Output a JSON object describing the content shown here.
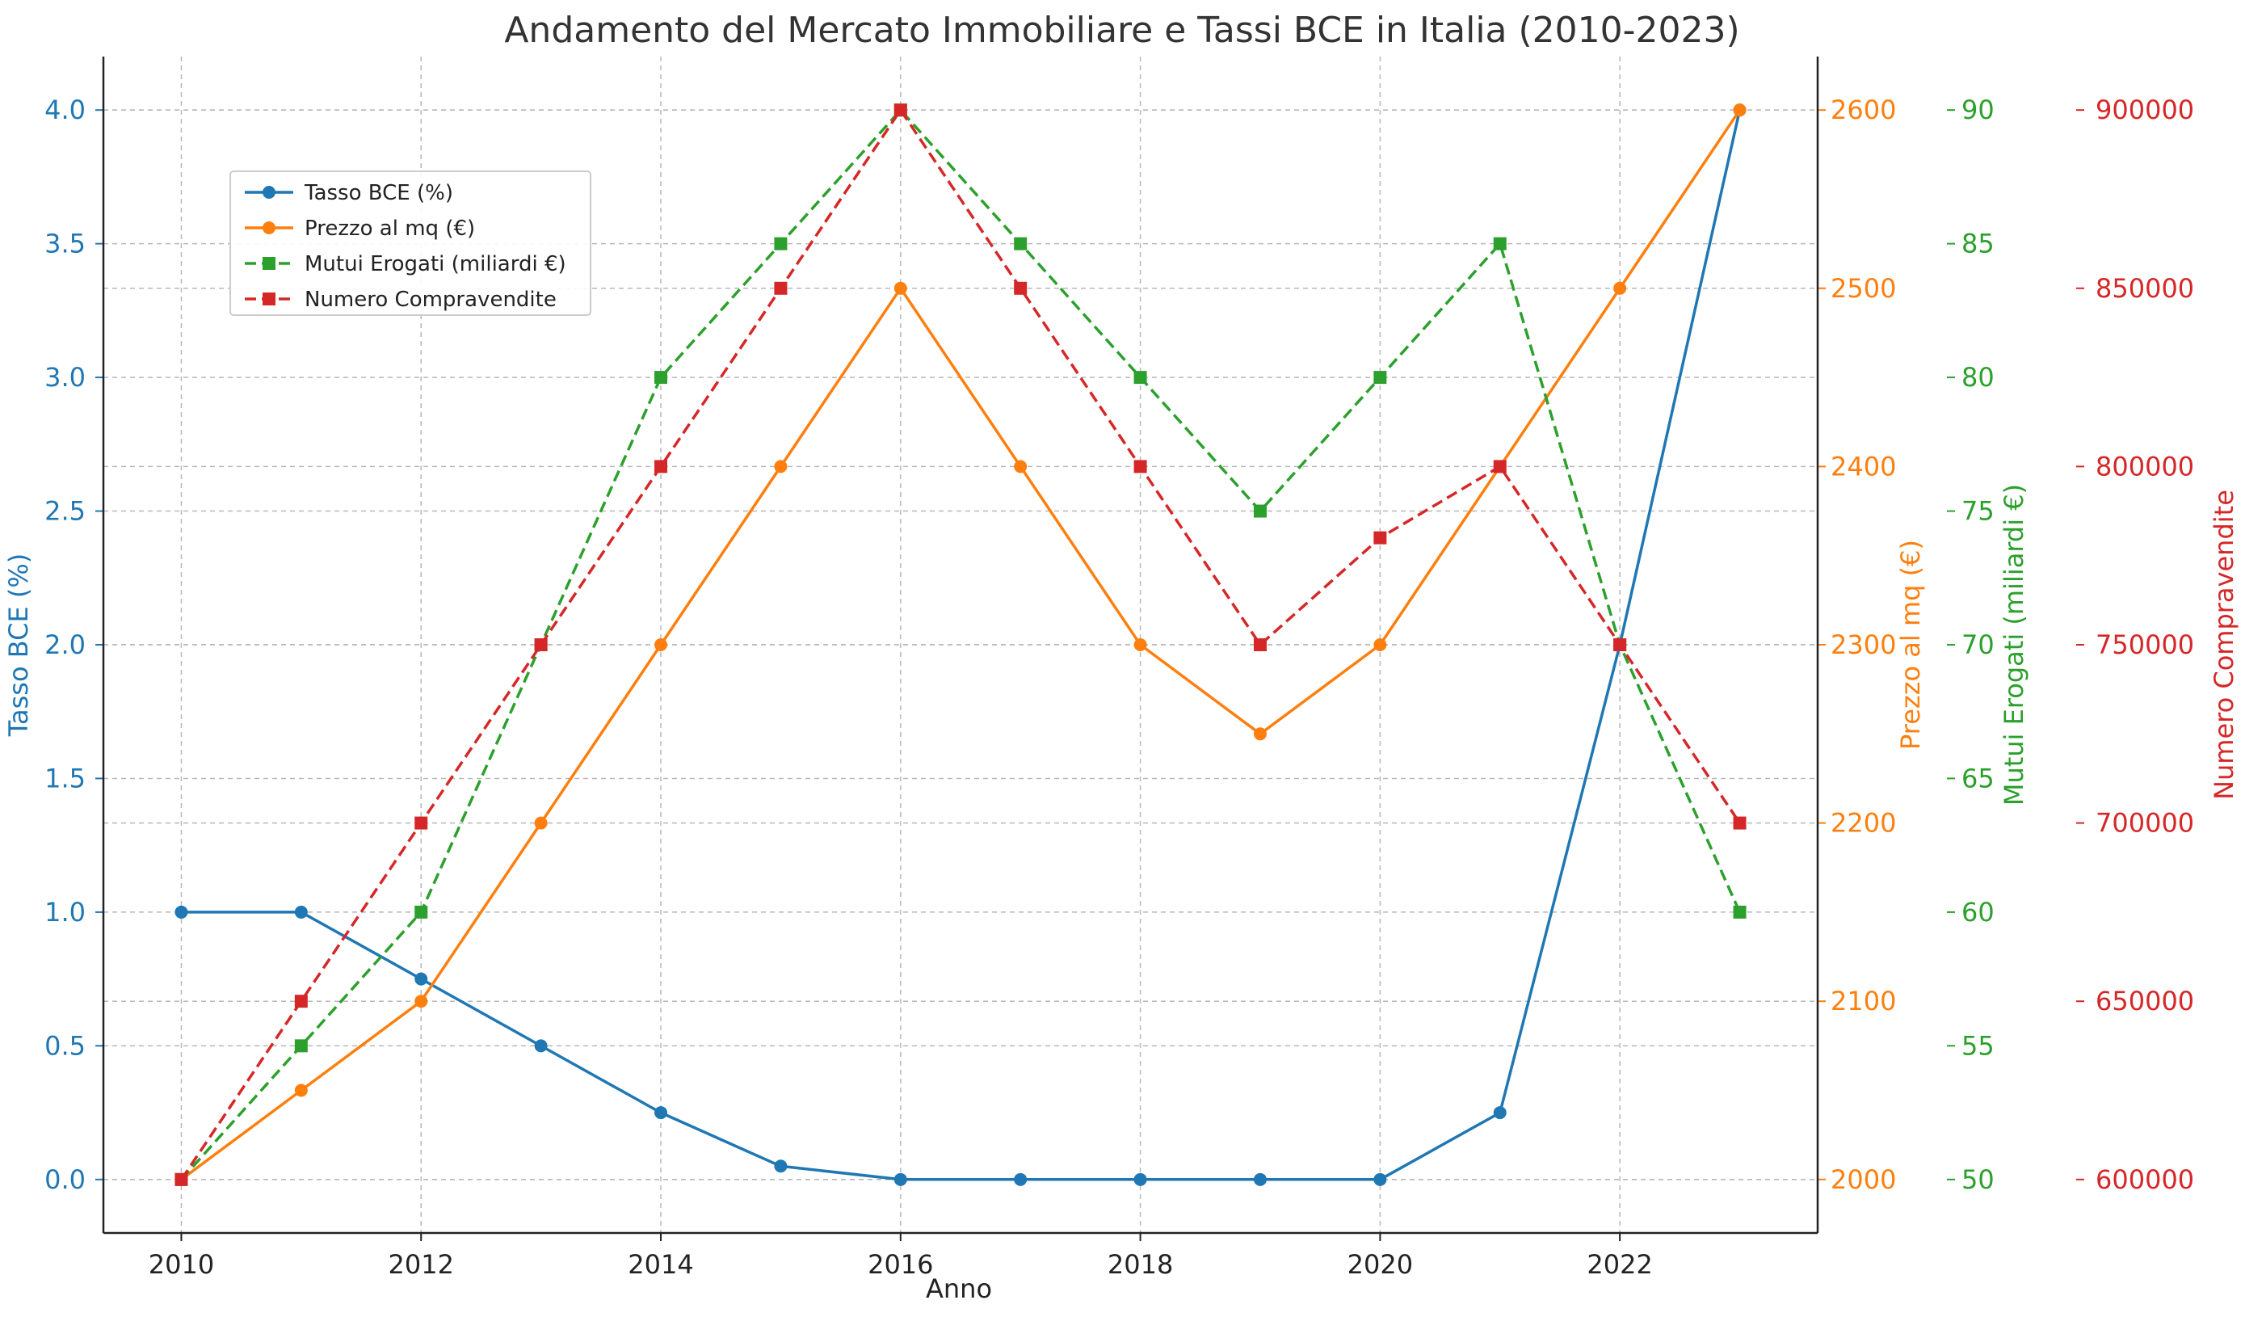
{
  "chart_data": {
    "type": "line",
    "title": "Andamento del Mercato Immobiliare e Tassi BCE in Italia (2010-2023)",
    "xlabel": "Anno",
    "x": [
      2010,
      2011,
      2012,
      2013,
      2014,
      2015,
      2016,
      2017,
      2018,
      2019,
      2020,
      2021,
      2022,
      2023
    ],
    "xlim": [
      2009.35,
      2023.65
    ],
    "xticks": [
      "2010",
      "2012",
      "2014",
      "2016",
      "2018",
      "2020",
      "2022"
    ],
    "grid": true,
    "legend_position": "upper-left",
    "series": [
      {
        "name": "Tasso BCE (%)",
        "axis_label": "Tasso BCE (%)",
        "color": "#1f77b4",
        "line_style": "solid",
        "marker": "circle",
        "values": [
          1.0,
          1.0,
          0.75,
          0.5,
          0.25,
          0.05,
          0.0,
          0.0,
          0.0,
          0.0,
          0.0,
          0.25,
          2.0,
          4.0
        ],
        "ylim": [
          -0.2,
          4.2
        ],
        "ticks": [
          "0.0",
          "0.5",
          "1.0",
          "1.5",
          "2.0",
          "2.5",
          "3.0",
          "3.5",
          "4.0"
        ]
      },
      {
        "name": "Prezzo al mq (€)",
        "axis_label": "Prezzo al mq (€)",
        "color": "#ff7f0e",
        "line_style": "solid",
        "marker": "circle",
        "values": [
          2000,
          2050,
          2100,
          2200,
          2300,
          2400,
          2500,
          2400,
          2300,
          2250,
          2300,
          2400,
          2500,
          2600
        ],
        "ylim": [
          1970,
          2630
        ],
        "ticks": [
          "2000",
          "2100",
          "2200",
          "2300",
          "2400",
          "2500",
          "2600"
        ]
      },
      {
        "name": "Mutui Erogati (miliardi €)",
        "axis_label": "Mutui Erogati (miliardi €)",
        "color": "#2ca02c",
        "line_style": "dashed",
        "marker": "square",
        "values": [
          50,
          55,
          60,
          70,
          80,
          85,
          90,
          85,
          80,
          75,
          80,
          85,
          70,
          60
        ],
        "ylim": [
          48,
          92
        ],
        "ticks": [
          "50",
          "55",
          "60",
          "65",
          "70",
          "75",
          "80",
          "85",
          "90"
        ]
      },
      {
        "name": "Numero Compravendite",
        "axis_label": "Numero Compravendite",
        "color": "#d62728",
        "line_style": "dashed",
        "marker": "square",
        "values": [
          600000,
          650000,
          700000,
          750000,
          800000,
          850000,
          900000,
          850000,
          800000,
          750000,
          780000,
          800000,
          750000,
          700000
        ],
        "ylim": [
          585000,
          915000
        ],
        "ticks": [
          "600000",
          "650000",
          "700000",
          "750000",
          "800000",
          "850000",
          "900000"
        ]
      }
    ]
  }
}
